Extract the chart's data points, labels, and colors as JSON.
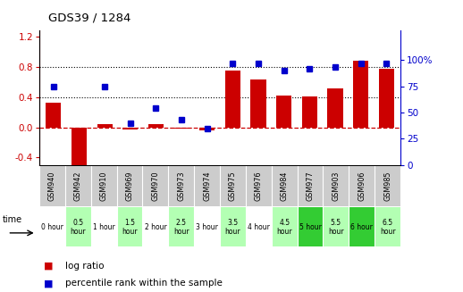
{
  "title": "GDS39 / 1284",
  "gsm_labels": [
    "GSM940",
    "GSM942",
    "GSM910",
    "GSM969",
    "GSM970",
    "GSM973",
    "GSM974",
    "GSM975",
    "GSM976",
    "GSM984",
    "GSM977",
    "GSM903",
    "GSM906",
    "GSM985"
  ],
  "time_labels": [
    "0 hour",
    "0.5\nhour",
    "1 hour",
    "1.5\nhour",
    "2 hour",
    "2.5\nhour",
    "3 hour",
    "3.5\nhour",
    "4 hour",
    "4.5\nhour",
    "5 hour",
    "5.5\nhour",
    "6 hour",
    "6.5\nhour"
  ],
  "log_ratio": [
    0.32,
    -0.53,
    0.04,
    -0.03,
    0.04,
    -0.02,
    -0.04,
    0.75,
    0.63,
    0.42,
    0.41,
    0.52,
    0.88,
    0.78
  ],
  "percentile": [
    75,
    null,
    75,
    40,
    54,
    43,
    35,
    97,
    97,
    90,
    92,
    93,
    97,
    97
  ],
  "bar_color": "#CC0000",
  "dot_color": "#0000CC",
  "ylim_left": [
    -0.5,
    1.28
  ],
  "ylim_right": [
    0,
    128
  ],
  "yticks_left": [
    -0.4,
    0.0,
    0.4,
    0.8,
    1.2
  ],
  "yticks_right": [
    0,
    25,
    50,
    75,
    100
  ],
  "hlines": [
    0.4,
    0.8
  ],
  "zero_line_color": "#CC0000",
  "bg_color": "#ffffff",
  "gsm_row_color": "#cccccc",
  "time_row_colors": [
    "#ffffff",
    "#b3ffb3",
    "#ffffff",
    "#b3ffb3",
    "#ffffff",
    "#b3ffb3",
    "#ffffff",
    "#b3ffb3",
    "#ffffff",
    "#b3ffb3",
    "#33cc33",
    "#b3ffb3",
    "#33cc33",
    "#b3ffb3"
  ],
  "legend_red": "log ratio",
  "legend_blue": "percentile rank within the sample"
}
